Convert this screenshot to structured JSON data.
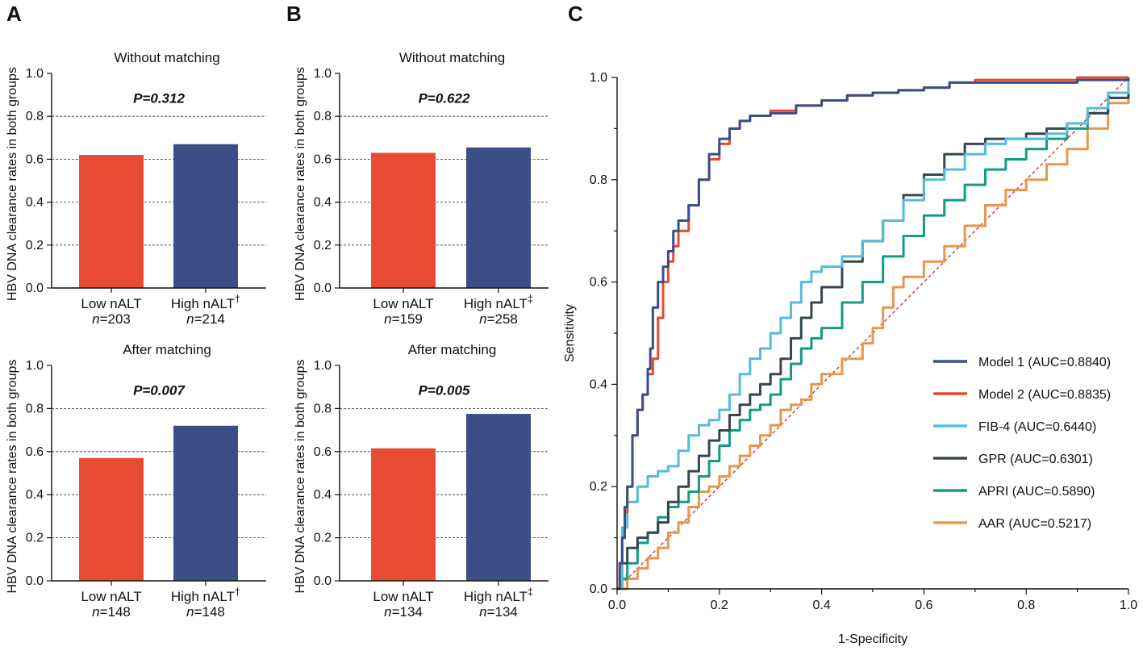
{
  "chart_data": [
    {
      "panel": "A",
      "type": "bar",
      "title": "Without matching",
      "pvalue": "P=0.312",
      "ylabel": "HBV DNA clearance rates in both groups",
      "ylim": [
        0,
        1.0
      ],
      "yticks": [
        "0.0",
        "0.2",
        "0.4",
        "0.6",
        "0.8",
        "1.0"
      ],
      "categories": [
        "Low nALT",
        "High nALT"
      ],
      "category_marks": [
        "",
        "†"
      ],
      "n_labels": [
        "n=203",
        "n=214"
      ],
      "values": [
        0.62,
        0.67
      ],
      "grid": "dashed horizontal"
    },
    {
      "panel": "",
      "type": "bar",
      "title": "After matching",
      "pvalue": "P=0.007",
      "ylabel": "HBV DNA clearance rates in both groups",
      "ylim": [
        0,
        1.0
      ],
      "yticks": [
        "0.0",
        "0.2",
        "0.4",
        "0.6",
        "0.8",
        "1.0"
      ],
      "categories": [
        "Low nALT",
        "High nALT"
      ],
      "category_marks": [
        "",
        "†"
      ],
      "n_labels": [
        "n=148",
        "n=148"
      ],
      "values": [
        0.57,
        0.72
      ],
      "grid": "dashed horizontal"
    },
    {
      "panel": "B",
      "type": "bar",
      "title": "Without matching",
      "pvalue": "P=0.622",
      "ylabel": "HBV DNA clearance rates in both groups",
      "ylim": [
        0,
        1.0
      ],
      "yticks": [
        "0.0",
        "0.2",
        "0.4",
        "0.6",
        "0.8",
        "1.0"
      ],
      "categories": [
        "Low nALT",
        "High nALT"
      ],
      "category_marks": [
        "",
        "‡"
      ],
      "n_labels": [
        "n=159",
        "n=258"
      ],
      "values": [
        0.63,
        0.655
      ],
      "grid": "dashed horizontal"
    },
    {
      "panel": "",
      "type": "bar",
      "title": "After matching",
      "pvalue": "P=0.005",
      "ylabel": "HBV DNA clearance rates in both groups",
      "ylim": [
        0,
        1.0
      ],
      "yticks": [
        "0.0",
        "0.2",
        "0.4",
        "0.6",
        "0.8",
        "1.0"
      ],
      "categories": [
        "Low nALT",
        "High nALT"
      ],
      "category_marks": [
        "",
        "‡"
      ],
      "n_labels": [
        "n=134",
        "n=134"
      ],
      "values": [
        0.615,
        0.775
      ],
      "grid": "dashed horizontal"
    },
    {
      "panel": "C",
      "type": "line",
      "title": "",
      "xlabel": "1-Specificity",
      "ylabel": "Sensitivity",
      "xlim": [
        0,
        1.0
      ],
      "ylim": [
        0,
        1.0
      ],
      "xticks": [
        "0.0",
        "0.2",
        "0.4",
        "0.6",
        "0.8",
        "1.0"
      ],
      "yticks": [
        "0.0",
        "0.2",
        "0.4",
        "0.6",
        "0.8",
        "1.0"
      ],
      "reference_line": true,
      "legend_position": "bottom-right",
      "series": [
        {
          "name": "Model 1 (AUC=0.8840)",
          "color": "#3b4f86",
          "x": [
            0,
            0.005,
            0.01,
            0.015,
            0.02,
            0.03,
            0.04,
            0.05,
            0.06,
            0.065,
            0.07,
            0.08,
            0.09,
            0.1,
            0.11,
            0.12,
            0.14,
            0.16,
            0.18,
            0.2,
            0.22,
            0.24,
            0.26,
            0.3,
            0.35,
            0.4,
            0.45,
            0.5,
            0.55,
            0.6,
            0.65,
            0.7,
            0.8,
            0.9,
            1.0
          ],
          "y": [
            0,
            0.05,
            0.1,
            0.16,
            0.2,
            0.3,
            0.35,
            0.38,
            0.43,
            0.47,
            0.55,
            0.6,
            0.63,
            0.66,
            0.7,
            0.72,
            0.75,
            0.8,
            0.85,
            0.88,
            0.9,
            0.915,
            0.925,
            0.93,
            0.945,
            0.955,
            0.965,
            0.97,
            0.975,
            0.98,
            0.99,
            0.99,
            0.99,
            0.995,
            1.0
          ]
        },
        {
          "name": "Model 2 (AUC=0.8835)",
          "color": "#e84b33",
          "x": [
            0,
            0.005,
            0.01,
            0.015,
            0.02,
            0.03,
            0.04,
            0.05,
            0.06,
            0.07,
            0.08,
            0.09,
            0.1,
            0.11,
            0.12,
            0.14,
            0.16,
            0.18,
            0.2,
            0.22,
            0.24,
            0.26,
            0.3,
            0.35,
            0.4,
            0.45,
            0.5,
            0.55,
            0.6,
            0.65,
            0.7,
            0.8,
            0.9,
            1.0
          ],
          "y": [
            0,
            0.05,
            0.1,
            0.15,
            0.2,
            0.3,
            0.35,
            0.38,
            0.42,
            0.45,
            0.53,
            0.6,
            0.64,
            0.67,
            0.7,
            0.75,
            0.8,
            0.84,
            0.87,
            0.9,
            0.915,
            0.925,
            0.935,
            0.945,
            0.955,
            0.965,
            0.97,
            0.975,
            0.98,
            0.99,
            0.995,
            0.995,
            1.0,
            1.0
          ]
        },
        {
          "name": "FIB-4 (AUC=0.6440)",
          "color": "#55bcd9",
          "x": [
            0,
            0.01,
            0.02,
            0.04,
            0.06,
            0.08,
            0.1,
            0.12,
            0.14,
            0.16,
            0.18,
            0.2,
            0.22,
            0.24,
            0.26,
            0.28,
            0.3,
            0.32,
            0.34,
            0.36,
            0.38,
            0.4,
            0.44,
            0.48,
            0.52,
            0.56,
            0.6,
            0.64,
            0.68,
            0.72,
            0.76,
            0.8,
            0.84,
            0.88,
            0.92,
            0.96,
            1.0
          ],
          "y": [
            0,
            0.12,
            0.17,
            0.2,
            0.22,
            0.23,
            0.24,
            0.27,
            0.3,
            0.32,
            0.33,
            0.35,
            0.38,
            0.42,
            0.45,
            0.47,
            0.5,
            0.53,
            0.56,
            0.6,
            0.62,
            0.63,
            0.65,
            0.68,
            0.72,
            0.76,
            0.8,
            0.82,
            0.85,
            0.87,
            0.88,
            0.88,
            0.89,
            0.91,
            0.94,
            0.97,
            1.0
          ]
        },
        {
          "name": "GPR (AUC=0.6301)",
          "color": "#36474f",
          "x": [
            0,
            0.01,
            0.02,
            0.04,
            0.06,
            0.08,
            0.1,
            0.12,
            0.14,
            0.16,
            0.18,
            0.2,
            0.22,
            0.24,
            0.26,
            0.28,
            0.3,
            0.32,
            0.34,
            0.36,
            0.38,
            0.4,
            0.44,
            0.48,
            0.52,
            0.56,
            0.6,
            0.64,
            0.68,
            0.72,
            0.76,
            0.8,
            0.84,
            0.88,
            0.92,
            0.96,
            1.0
          ],
          "y": [
            0,
            0.05,
            0.08,
            0.1,
            0.11,
            0.13,
            0.17,
            0.2,
            0.23,
            0.26,
            0.29,
            0.31,
            0.34,
            0.36,
            0.38,
            0.4,
            0.42,
            0.45,
            0.49,
            0.53,
            0.56,
            0.59,
            0.64,
            0.68,
            0.72,
            0.77,
            0.81,
            0.85,
            0.87,
            0.88,
            0.88,
            0.89,
            0.9,
            0.91,
            0.93,
            0.96,
            1.0
          ]
        },
        {
          "name": "APRI (AUC=0.5890)",
          "color": "#129c84",
          "x": [
            0,
            0.01,
            0.02,
            0.04,
            0.06,
            0.08,
            0.1,
            0.12,
            0.14,
            0.16,
            0.18,
            0.2,
            0.22,
            0.24,
            0.26,
            0.28,
            0.3,
            0.32,
            0.34,
            0.36,
            0.38,
            0.4,
            0.44,
            0.48,
            0.52,
            0.56,
            0.6,
            0.64,
            0.68,
            0.72,
            0.76,
            0.8,
            0.84,
            0.88,
            0.92,
            0.96,
            1.0
          ],
          "y": [
            0,
            0.02,
            0.05,
            0.09,
            0.11,
            0.14,
            0.16,
            0.17,
            0.19,
            0.22,
            0.25,
            0.28,
            0.31,
            0.33,
            0.35,
            0.36,
            0.38,
            0.41,
            0.44,
            0.47,
            0.49,
            0.51,
            0.56,
            0.6,
            0.65,
            0.69,
            0.73,
            0.76,
            0.79,
            0.82,
            0.84,
            0.86,
            0.88,
            0.9,
            0.93,
            0.96,
            1.0
          ]
        },
        {
          "name": "AAR (AUC=0.5217)",
          "color": "#e8974a",
          "x": [
            0,
            0.02,
            0.04,
            0.06,
            0.08,
            0.1,
            0.12,
            0.14,
            0.16,
            0.18,
            0.2,
            0.22,
            0.24,
            0.26,
            0.28,
            0.3,
            0.32,
            0.34,
            0.36,
            0.38,
            0.4,
            0.44,
            0.48,
            0.5,
            0.52,
            0.54,
            0.56,
            0.6,
            0.64,
            0.68,
            0.72,
            0.76,
            0.8,
            0.84,
            0.88,
            0.92,
            0.96,
            1.0
          ],
          "y": [
            0,
            0.02,
            0.04,
            0.06,
            0.08,
            0.11,
            0.13,
            0.16,
            0.19,
            0.2,
            0.22,
            0.24,
            0.26,
            0.28,
            0.3,
            0.32,
            0.35,
            0.36,
            0.37,
            0.4,
            0.42,
            0.45,
            0.48,
            0.51,
            0.55,
            0.59,
            0.61,
            0.64,
            0.67,
            0.71,
            0.75,
            0.78,
            0.8,
            0.83,
            0.86,
            0.9,
            0.95,
            1.0
          ]
        }
      ]
    }
  ]
}
